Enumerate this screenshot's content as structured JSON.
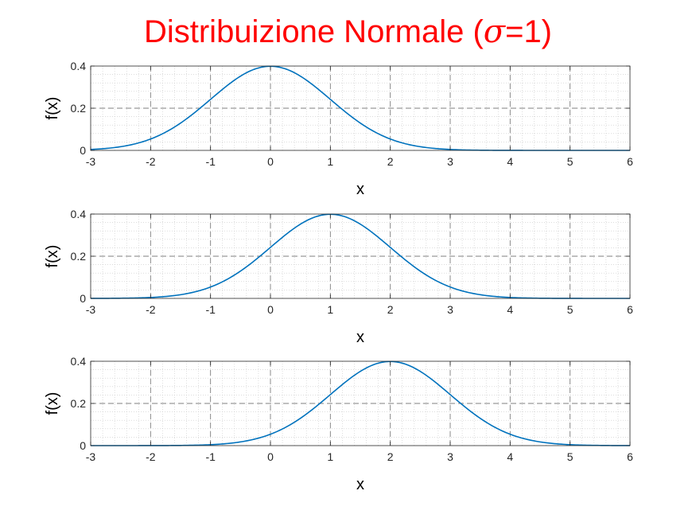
{
  "title": {
    "prefix": "Distribuizione Normale (",
    "symbol": "σ",
    "suffix": "=1)"
  },
  "colors": {
    "title": "#ff0000",
    "line": "#0072bd",
    "major_grid": "#7f7f7f",
    "minor_grid": "#c8c8c8",
    "axes": "#262626"
  },
  "chart_data": [
    {
      "type": "line",
      "function": "normal_pdf",
      "mean": 0,
      "sigma": 1,
      "xlabel": "x",
      "ylabel": "f(x)",
      "xlim": [
        -3,
        6
      ],
      "ylim": [
        0,
        0.4
      ],
      "xticks": [
        -3,
        -2,
        -1,
        0,
        1,
        2,
        3,
        4,
        5,
        6
      ],
      "yticks": [
        0,
        0.2,
        0.4
      ],
      "xtick_labels": [
        "-3",
        "-2",
        "-1",
        "0",
        "1",
        "2",
        "3",
        "4",
        "5",
        "6"
      ],
      "ytick_labels": [
        "0",
        "0.2",
        "0.4"
      ],
      "grid": "major dashed + minor dotted",
      "x": [
        -3,
        -2.5,
        -2,
        -1.5,
        -1,
        -0.5,
        0,
        0.5,
        1,
        1.5,
        2,
        2.5,
        3,
        3.5,
        4,
        4.5,
        5,
        5.5,
        6
      ],
      "y": [
        0.0044,
        0.0175,
        0.054,
        0.1295,
        0.242,
        0.3521,
        0.3989,
        0.3521,
        0.242,
        0.1295,
        0.054,
        0.0175,
        0.0044,
        0.0009,
        0.0001,
        0,
        0,
        0,
        0
      ]
    },
    {
      "type": "line",
      "function": "normal_pdf",
      "mean": 1,
      "sigma": 1,
      "xlabel": "x",
      "ylabel": "f(x)",
      "xlim": [
        -3,
        6
      ],
      "ylim": [
        0,
        0.4
      ],
      "xticks": [
        -3,
        -2,
        -1,
        0,
        1,
        2,
        3,
        4,
        5,
        6
      ],
      "yticks": [
        0,
        0.2,
        0.4
      ],
      "xtick_labels": [
        "-3",
        "-2",
        "-1",
        "0",
        "1",
        "2",
        "3",
        "4",
        "5",
        "6"
      ],
      "ytick_labels": [
        "0",
        "0.2",
        "0.4"
      ],
      "grid": "major dashed + minor dotted",
      "x": [
        -3,
        -2.5,
        -2,
        -1.5,
        -1,
        -0.5,
        0,
        0.5,
        1,
        1.5,
        2,
        2.5,
        3,
        3.5,
        4,
        4.5,
        5,
        5.5,
        6
      ],
      "y": [
        0.0001,
        0.0009,
        0.0044,
        0.0175,
        0.054,
        0.1295,
        0.242,
        0.3521,
        0.3989,
        0.3521,
        0.242,
        0.1295,
        0.054,
        0.0175,
        0.0044,
        0.0009,
        0.0001,
        0,
        0
      ]
    },
    {
      "type": "line",
      "function": "normal_pdf",
      "mean": 2,
      "sigma": 1,
      "xlabel": "x",
      "ylabel": "f(x)",
      "xlim": [
        -3,
        6
      ],
      "ylim": [
        0,
        0.4
      ],
      "xticks": [
        -3,
        -2,
        -1,
        0,
        1,
        2,
        3,
        4,
        5,
        6
      ],
      "yticks": [
        0,
        0.2,
        0.4
      ],
      "xtick_labels": [
        "-3",
        "-2",
        "-1",
        "0",
        "1",
        "2",
        "3",
        "4",
        "5",
        "6"
      ],
      "ytick_labels": [
        "0",
        "0.2",
        "0.4"
      ],
      "grid": "major dashed + minor dotted",
      "x": [
        -3,
        -2.5,
        -2,
        -1.5,
        -1,
        -0.5,
        0,
        0.5,
        1,
        1.5,
        2,
        2.5,
        3,
        3.5,
        4,
        4.5,
        5,
        5.5,
        6
      ],
      "y": [
        0,
        0,
        0.0001,
        0.0009,
        0.0044,
        0.0175,
        0.054,
        0.1295,
        0.242,
        0.3521,
        0.3989,
        0.3521,
        0.242,
        0.1295,
        0.054,
        0.0175,
        0.0044,
        0.0009,
        0.0001
      ]
    }
  ]
}
